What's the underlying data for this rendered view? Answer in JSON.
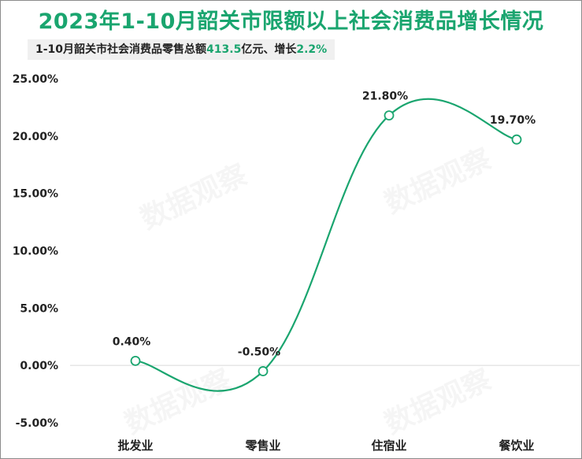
{
  "title": "2023年1-10月韶关市限额以上社会消费品增长情况",
  "subtitle": {
    "prefix": "1-10月韶关市社会消费品零售总额",
    "amount": "413.5",
    "unit_sep": "亿元、增长",
    "growth": "2.2%"
  },
  "colors": {
    "accent": "#1aa56f",
    "line": "#1aa56f",
    "zero_line": "#d9d9d9",
    "text": "#222222"
  },
  "watermark_text": "数据观察",
  "chart_data": {
    "type": "line",
    "smooth": true,
    "categories": [
      "批发业",
      "零售业",
      "住宿业",
      "餐饮业"
    ],
    "series": [
      {
        "values": [
          0.4,
          -0.5,
          21.8,
          19.7
        ],
        "labels": [
          "0.40%",
          "-0.50%",
          "21.80%",
          "19.70%"
        ]
      }
    ],
    "ylim": [
      -5,
      25
    ],
    "yticks": [
      25,
      20,
      15,
      10,
      5,
      0,
      -5
    ],
    "ytick_labels": [
      "25.00%",
      "20.00%",
      "15.00%",
      "10.00%",
      "5.00%",
      "0.00%",
      "-5.00%"
    ],
    "grid": false,
    "legend": "none"
  }
}
